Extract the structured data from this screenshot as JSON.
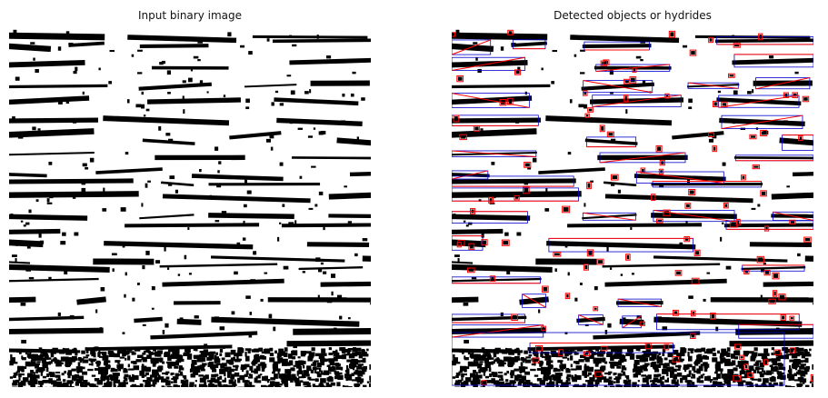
{
  "panels": [
    {
      "title": "Input binary image"
    },
    {
      "title": "Detected objects or hydrides"
    }
  ],
  "colors": {
    "foreground": "#000000",
    "background": "#ffffff",
    "bbox": "#0000cc",
    "fit_line": "#ff0000"
  }
}
